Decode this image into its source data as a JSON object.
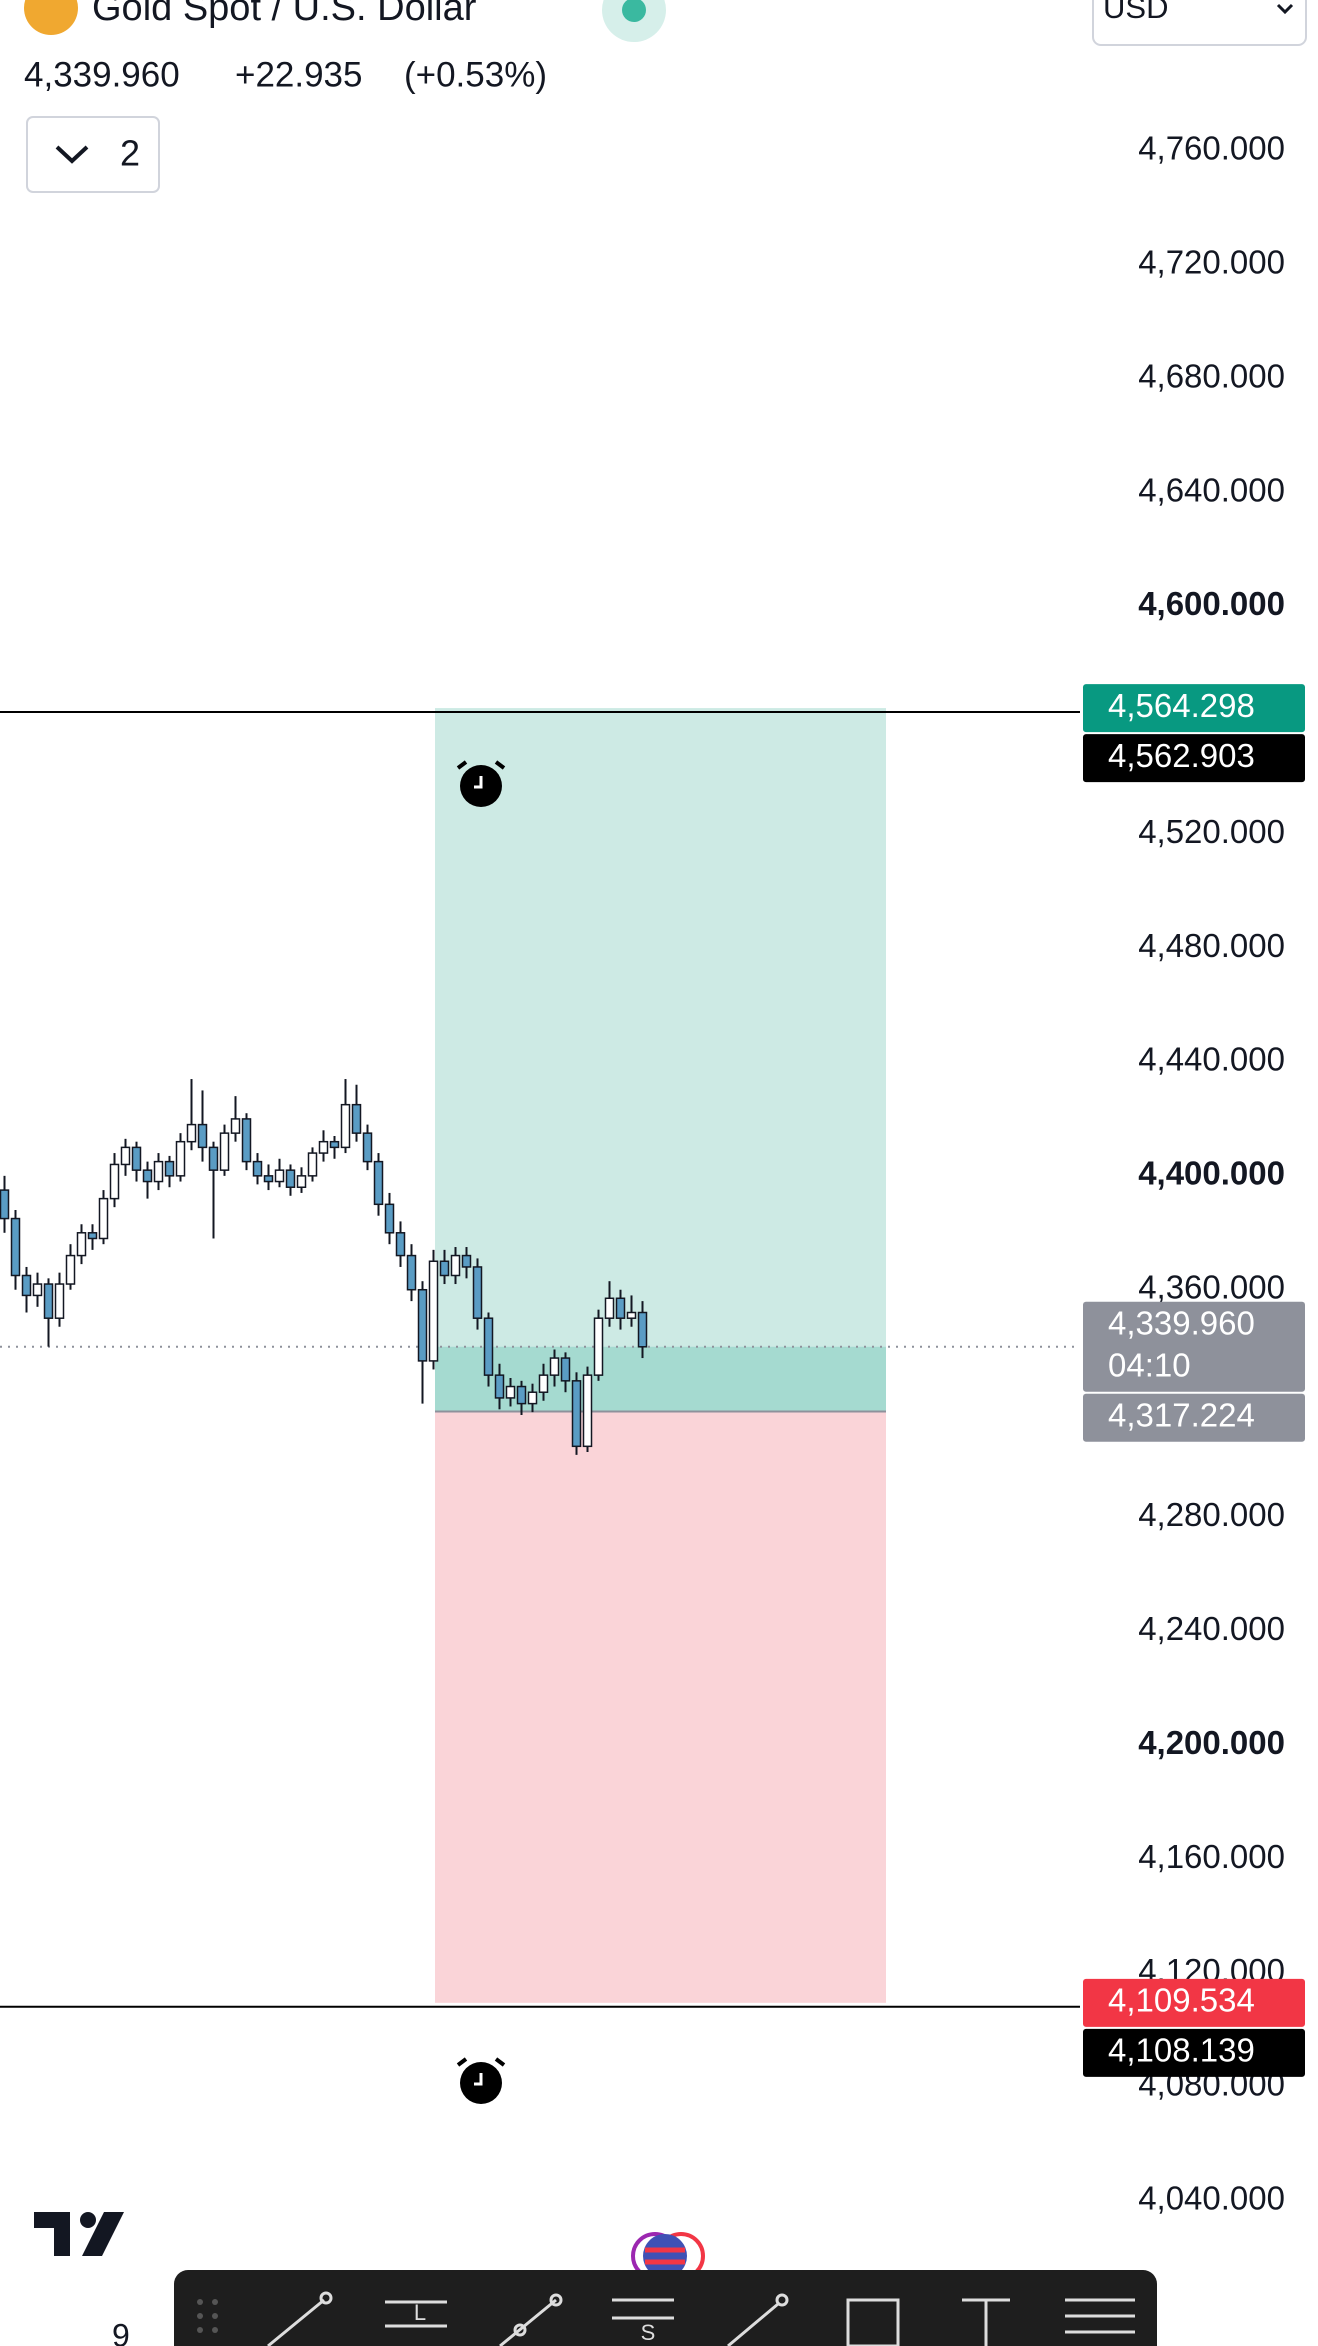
{
  "header": {
    "title": "Gold Spot / U.S. Dollar",
    "price": "4,339.960",
    "change": "+22.935",
    "change_pct": "(+0.53%)",
    "indicators_count": "2",
    "currency": "USD"
  },
  "chart_data": {
    "type": "candlestick",
    "up_color": "#ffffff",
    "down_color": "#5a9cc4",
    "wick_color": "#131722",
    "open": [
      4395,
      4385,
      4365,
      4358,
      4362,
      4350,
      4362,
      4372,
      4380,
      4378,
      4392,
      4404,
      4410,
      4402,
      4398,
      4405,
      4400,
      4412,
      4418,
      4410,
      4402,
      4415,
      4420,
      4405,
      4400,
      4398,
      4402,
      4396,
      4400,
      4408,
      4412,
      4410,
      4425,
      4415,
      4405,
      4390,
      4380,
      4372,
      4360,
      4335,
      4370,
      4365,
      4372,
      4368,
      4350,
      4330,
      4322,
      4326,
      4320,
      4324,
      4330,
      4336,
      4328,
      4305,
      4330,
      4350,
      4357,
      4350,
      4352
    ],
    "high": [
      4400,
      4388,
      4368,
      4366,
      4364,
      4366,
      4376,
      4383,
      4383,
      4395,
      4408,
      4413,
      4412,
      4405,
      4408,
      4407,
      4415,
      4434,
      4430,
      4412,
      4418,
      4428,
      4422,
      4408,
      4404,
      4406,
      4404,
      4403,
      4410,
      4416,
      4414,
      4434,
      4432,
      4418,
      4408,
      4394,
      4384,
      4376,
      4363,
      4374,
      4374,
      4375,
      4375,
      4371,
      4352,
      4334,
      4329,
      4328,
      4327,
      4334,
      4339,
      4338,
      4331,
      4333,
      4353,
      4363,
      4360,
      4358,
      4356
    ],
    "low": [
      4380,
      4360,
      4352,
      4354,
      4340,
      4347,
      4360,
      4369,
      4374,
      4376,
      4389,
      4400,
      4398,
      4392,
      4395,
      4396,
      4398,
      4409,
      4405,
      4378,
      4400,
      4412,
      4402,
      4397,
      4395,
      4396,
      4393,
      4394,
      4398,
      4405,
      4406,
      4408,
      4412,
      4402,
      4386,
      4376,
      4368,
      4356,
      4320,
      4332,
      4362,
      4362,
      4364,
      4346,
      4326,
      4318,
      4319,
      4316,
      4317,
      4321,
      4326,
      4324,
      4302,
      4303,
      4328,
      4347,
      4346,
      4347,
      4336
    ],
    "close": [
      4385,
      4365,
      4358,
      4362,
      4350,
      4362,
      4372,
      4380,
      4378,
      4392,
      4404,
      4410,
      4402,
      4398,
      4405,
      4400,
      4412,
      4418,
      4410,
      4402,
      4415,
      4420,
      4405,
      4400,
      4398,
      4402,
      4396,
      4400,
      4408,
      4412,
      4410,
      4425,
      4415,
      4405,
      4390,
      4380,
      4372,
      4360,
      4335,
      4370,
      4365,
      4372,
      4368,
      4350,
      4330,
      4322,
      4326,
      4320,
      4324,
      4330,
      4336,
      4328,
      4305,
      4330,
      4350,
      4357,
      4350,
      4352,
      4339.96
    ],
    "ylim": [
      3989,
      4813
    ],
    "yticks": [
      {
        "value": 4760,
        "label": "4,760.000"
      },
      {
        "value": 4720,
        "label": "4,720.000"
      },
      {
        "value": 4680,
        "label": "4,680.000"
      },
      {
        "value": 4640,
        "label": "4,640.000"
      },
      {
        "value": 4600,
        "label": "4,600.000",
        "bold": true
      },
      {
        "value": 4520,
        "label": "4,520.000"
      },
      {
        "value": 4480,
        "label": "4,480.000"
      },
      {
        "value": 4440,
        "label": "4,440.000"
      },
      {
        "value": 4400,
        "label": "4,400.000",
        "bold": true
      },
      {
        "value": 4360,
        "label": "4,360.000"
      },
      {
        "value": 4280,
        "label": "4,280.000"
      },
      {
        "value": 4240,
        "label": "4,240.000"
      },
      {
        "value": 4200,
        "label": "4,200.000",
        "bold": true
      },
      {
        "value": 4160,
        "label": "4,160.000"
      },
      {
        "value": 4120,
        "label": "4,120.000"
      },
      {
        "value": 4080,
        "label": "4,080.000"
      },
      {
        "value": 4040,
        "label": "4,040.000"
      }
    ],
    "markers": [
      {
        "value": 4564.298,
        "label": "4,564.298",
        "color": "#089981"
      },
      {
        "value": 4562.903,
        "label": "4,562.903",
        "color": "#000000"
      },
      {
        "value": 4339.96,
        "label": "4,339.960",
        "sublabel": "04:10",
        "color": "#8e919b"
      },
      {
        "value": 4317.224,
        "label": "4,317.224",
        "color": "#8e919b"
      },
      {
        "value": 4109.534,
        "label": "4,109.534",
        "color": "#f23645"
      },
      {
        "value": 4108.139,
        "label": "4,108.139",
        "color": "#000000"
      }
    ]
  },
  "footer": {
    "partial_label": "9",
    "tool_labels": [
      "L",
      "S"
    ]
  }
}
